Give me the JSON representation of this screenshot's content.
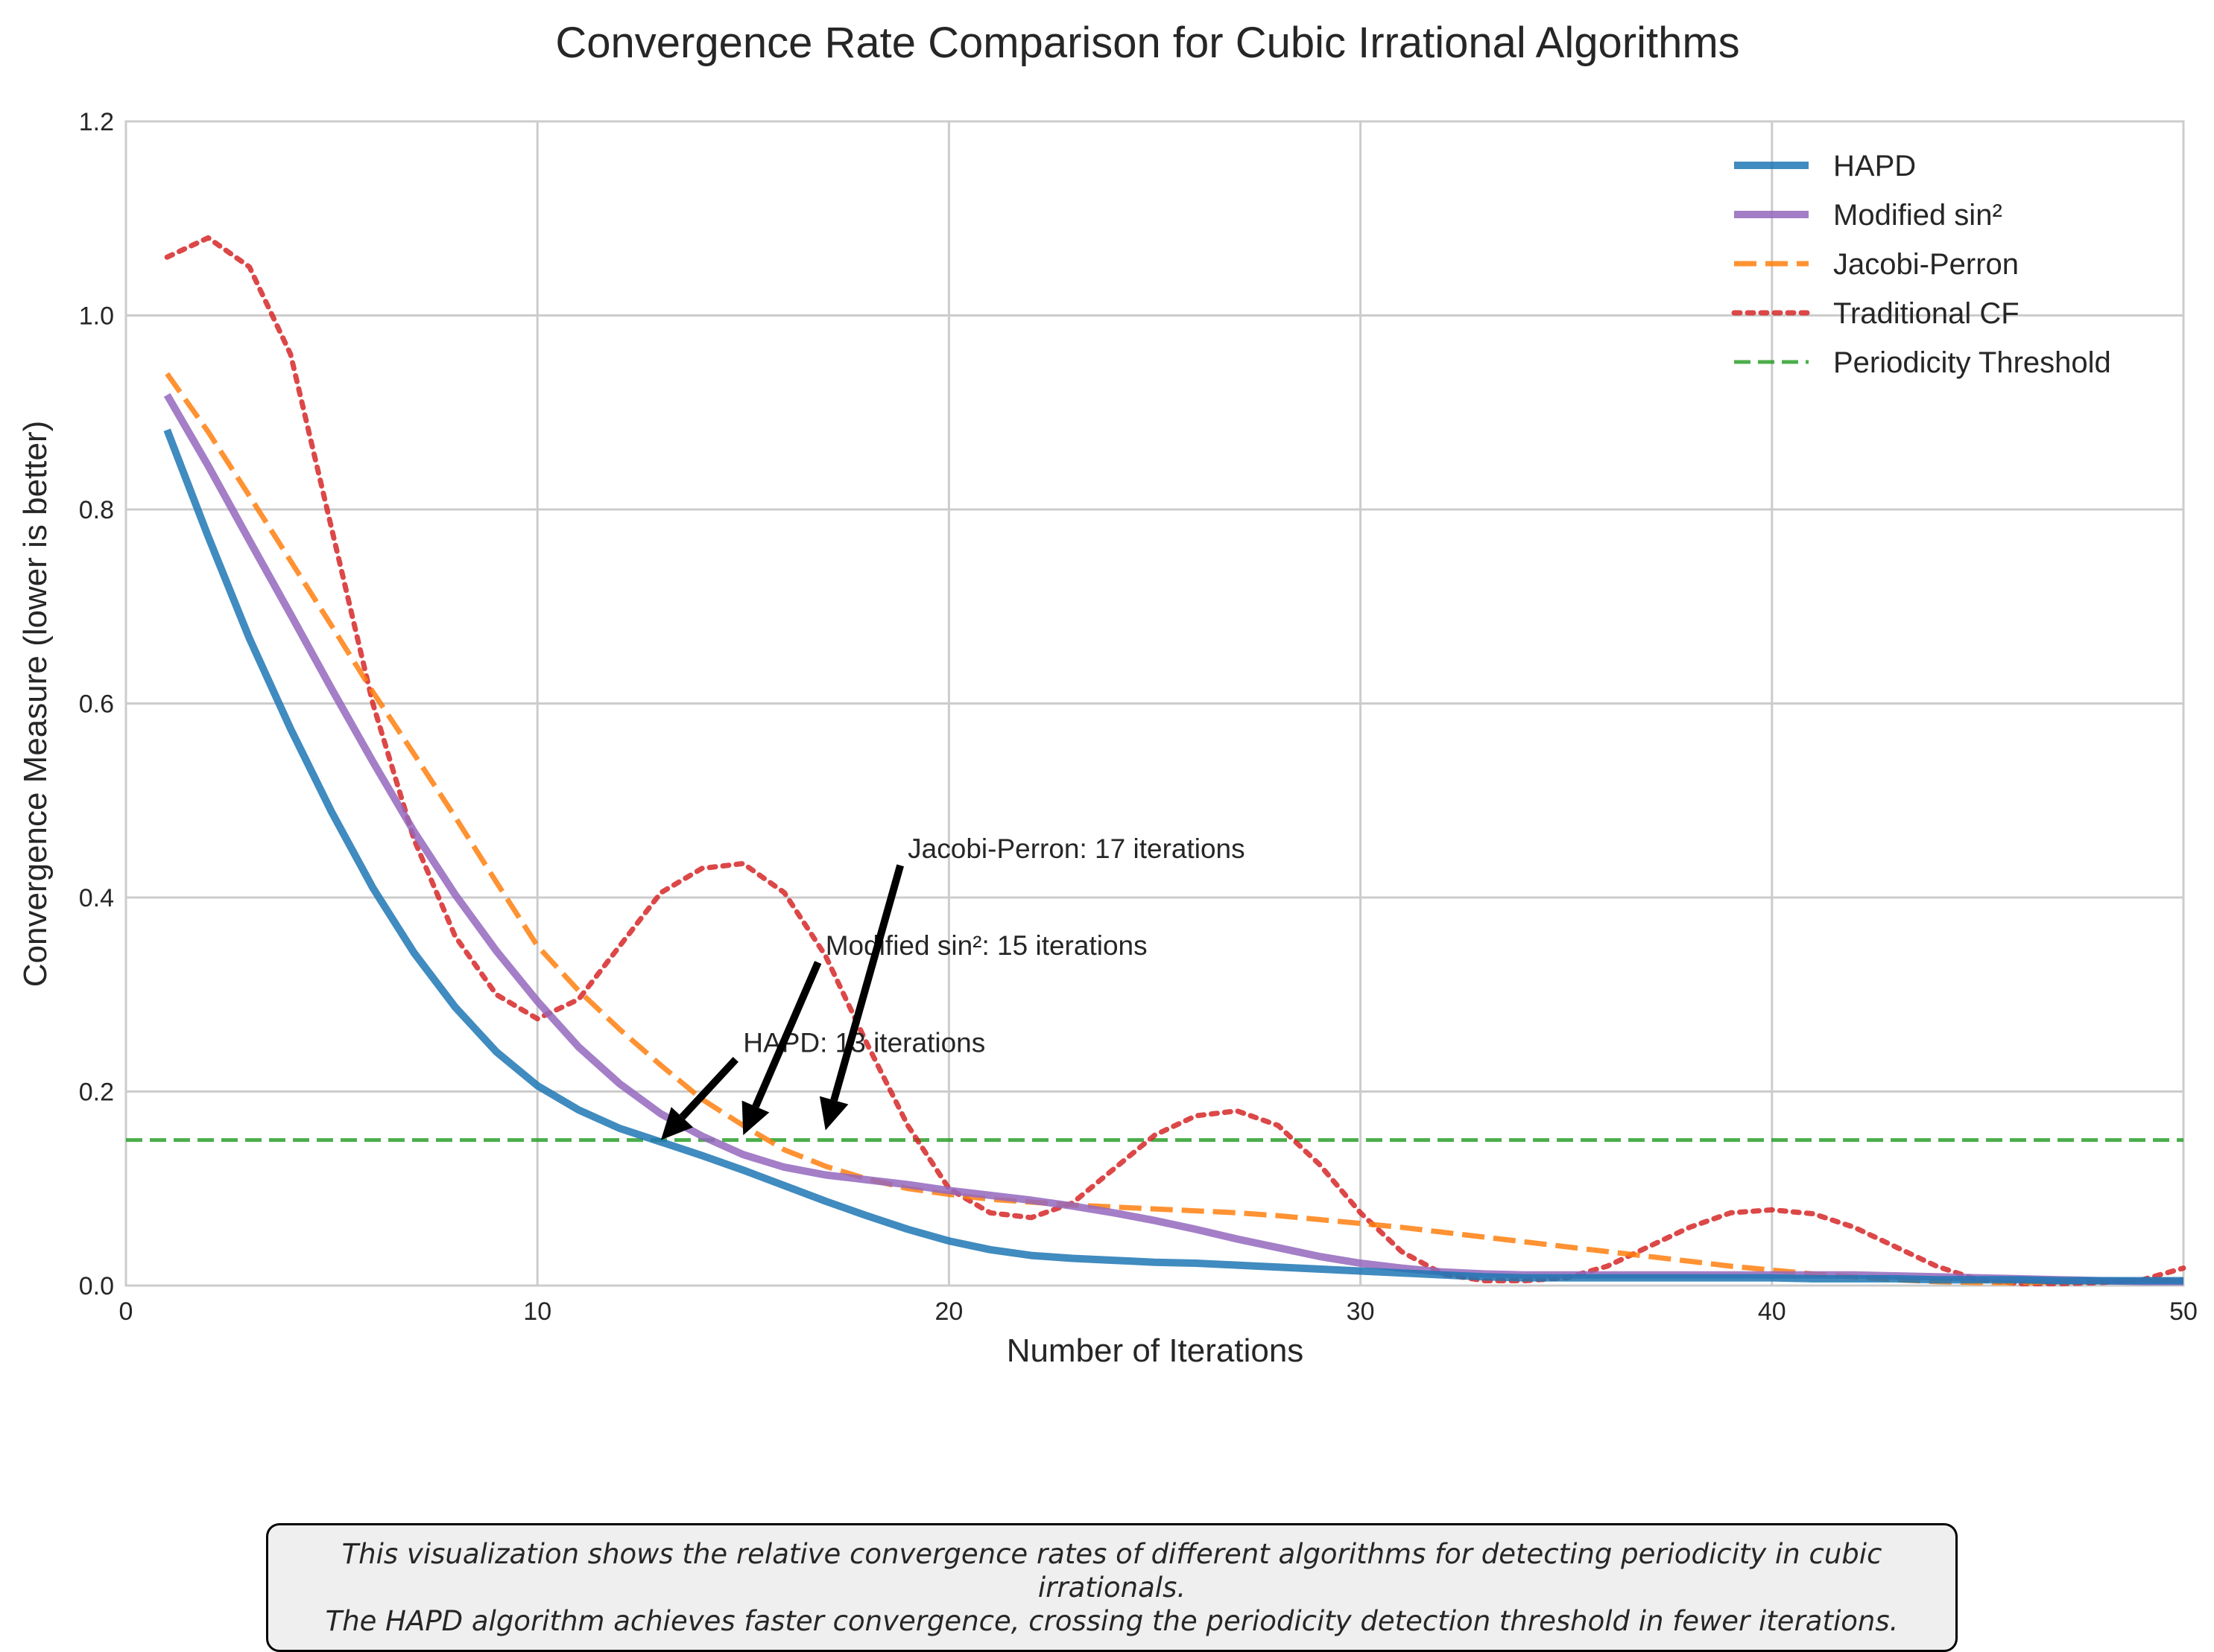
{
  "chart_data": {
    "type": "line",
    "title": "Convergence Rate Comparison for Cubic Irrational Algorithms",
    "xlabel": "Number of Iterations",
    "ylabel": "Convergence Measure (lower is better)",
    "xlim": [
      0,
      50
    ],
    "ylim": [
      0,
      1.2
    ],
    "xticks": [
      "0",
      "10",
      "20",
      "30",
      "40",
      "50"
    ],
    "yticks": [
      "0.0",
      "0.2",
      "0.4",
      "0.6",
      "0.8",
      "1.0",
      "1.2"
    ],
    "grid": true,
    "legend_position": "top-right",
    "x": [
      1,
      2,
      3,
      4,
      5,
      6,
      7,
      8,
      9,
      10,
      11,
      12,
      13,
      14,
      15,
      16,
      17,
      18,
      19,
      20,
      21,
      22,
      23,
      24,
      25,
      26,
      27,
      28,
      29,
      30,
      31,
      32,
      33,
      34,
      35,
      36,
      37,
      38,
      39,
      40,
      41,
      42,
      43,
      44,
      45,
      46,
      47,
      48,
      49,
      50
    ],
    "series": [
      {
        "name": "HAPD",
        "color": "#1f77b4",
        "style": "solid",
        "values": [
          0.882,
          0.772,
          0.667,
          0.574,
          0.488,
          0.41,
          0.343,
          0.287,
          0.241,
          0.206,
          0.181,
          0.162,
          0.148,
          0.134,
          0.119,
          0.103,
          0.087,
          0.072,
          0.058,
          0.046,
          0.037,
          0.031,
          0.028,
          0.026,
          0.024,
          0.023,
          0.021,
          0.019,
          0.017,
          0.015,
          0.013,
          0.011,
          0.009,
          0.008,
          0.008,
          0.008,
          0.008,
          0.008,
          0.008,
          0.008,
          0.007,
          0.007,
          0.007,
          0.006,
          0.006,
          0.006,
          0.005,
          0.005,
          0.005,
          0.005
        ]
      },
      {
        "name": "Modified sin²",
        "color": "#9467bd",
        "style": "solid",
        "values": [
          0.918,
          0.845,
          0.768,
          0.692,
          0.615,
          0.54,
          0.468,
          0.403,
          0.345,
          0.293,
          0.246,
          0.208,
          0.177,
          0.154,
          0.135,
          0.122,
          0.114,
          0.109,
          0.104,
          0.098,
          0.093,
          0.088,
          0.082,
          0.075,
          0.067,
          0.058,
          0.048,
          0.039,
          0.03,
          0.023,
          0.018,
          0.014,
          0.012,
          0.011,
          0.011,
          0.011,
          0.011,
          0.011,
          0.011,
          0.011,
          0.011,
          0.011,
          0.01,
          0.009,
          0.008,
          0.007,
          0.006,
          0.005,
          0.004,
          0.004
        ]
      },
      {
        "name": "Jacobi-Perron",
        "color": "#ff7f0e",
        "style": "dashed",
        "values": [
          0.94,
          0.88,
          0.814,
          0.747,
          0.68,
          0.612,
          0.548,
          0.483,
          0.416,
          0.35,
          0.304,
          0.264,
          0.227,
          0.192,
          0.165,
          0.14,
          0.123,
          0.11,
          0.1,
          0.094,
          0.089,
          0.086,
          0.083,
          0.081,
          0.079,
          0.077,
          0.075,
          0.072,
          0.068,
          0.064,
          0.06,
          0.055,
          0.05,
          0.045,
          0.04,
          0.035,
          0.03,
          0.025,
          0.02,
          0.016,
          0.012,
          0.009,
          0.006,
          0.004,
          0.003,
          0.003,
          0.004,
          0.004,
          0.005,
          0.006
        ]
      },
      {
        "name": "Traditional CF",
        "color": "#d62728",
        "style": "dotted",
        "values": [
          1.06,
          1.08,
          1.05,
          0.96,
          0.78,
          0.6,
          0.46,
          0.36,
          0.3,
          0.275,
          0.295,
          0.35,
          0.405,
          0.43,
          0.435,
          0.405,
          0.34,
          0.25,
          0.165,
          0.1,
          0.075,
          0.07,
          0.085,
          0.12,
          0.155,
          0.175,
          0.18,
          0.165,
          0.125,
          0.075,
          0.035,
          0.012,
          0.005,
          0.005,
          0.008,
          0.02,
          0.04,
          0.06,
          0.075,
          0.078,
          0.074,
          0.06,
          0.04,
          0.02,
          0.006,
          0.002,
          0.002,
          0.003,
          0.006,
          0.018
        ]
      },
      {
        "name": "Periodicity Threshold",
        "color": "#2ca02c",
        "style": "dashed",
        "threshold": 0.15
      }
    ],
    "annotations": [
      {
        "text": "HAPD: 13 iterations",
        "x_text": 15,
        "y_text": 0.25,
        "x_arrow": 13,
        "y_arrow": 0.15
      },
      {
        "text": "Modified sin²: 15 iterations",
        "x_text": 17,
        "y_text": 0.35,
        "x_arrow": 15,
        "y_arrow": 0.155
      },
      {
        "text": "Jacobi-Perron: 17 iterations",
        "x_text": 19,
        "y_text": 0.45,
        "x_arrow": 17,
        "y_arrow": 0.16
      }
    ]
  },
  "caption": {
    "line1": "This visualization shows the relative convergence rates of different algorithms for detecting periodicity in cubic irrationals.",
    "line2": "The HAPD algorithm achieves faster convergence, crossing the periodicity detection threshold in fewer iterations."
  }
}
